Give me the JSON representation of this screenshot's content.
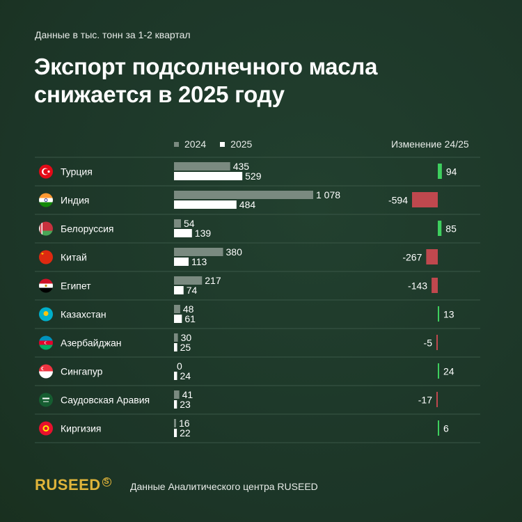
{
  "header": {
    "subtitle": "Данные в тыс. тонн за 1-2 квартал",
    "title": "Экспорт подсолнечного масла снижается в 2025 году"
  },
  "legend": {
    "label_2024": "2024",
    "label_2025": "2025"
  },
  "change_header": "Изменение 24/25",
  "colors": {
    "bar_2024": "#7a8a80",
    "bar_2025": "#ffffff",
    "positive": "#3ecf5e",
    "negative": "#c0484e",
    "divider": "#3a5747",
    "text": "#ffffff"
  },
  "chart_data": {
    "type": "bar",
    "categories": [
      "Турция",
      "Индия",
      "Белоруссия",
      "Китай",
      "Египет",
      "Казахстан",
      "Азербайджан",
      "Сингапур",
      "Саудовская Аравия",
      "Киргизия"
    ],
    "series": [
      {
        "name": "2024",
        "values": [
          435,
          1078,
          54,
          380,
          217,
          48,
          30,
          0,
          41,
          16
        ]
      },
      {
        "name": "2025",
        "values": [
          529,
          484,
          139,
          113,
          74,
          61,
          25,
          24,
          23,
          22
        ]
      }
    ],
    "value_labels_2024": [
      "435",
      "1 078",
      "54",
      "380",
      "217",
      "48",
      "30",
      "0",
      "41",
      "16"
    ],
    "value_labels_2025": [
      "529",
      "484",
      "139",
      "113",
      "74",
      "61",
      "25",
      "24",
      "23",
      "22"
    ],
    "change": [
      94,
      -594,
      85,
      -267,
      -143,
      13,
      -5,
      24,
      -17,
      6
    ],
    "change_labels": [
      "94",
      "-594",
      "85",
      "-267",
      "-143",
      "13",
      "-5",
      "24",
      "-17",
      "6"
    ],
    "flag_icons": [
      "turkey-flag-icon",
      "india-flag-icon",
      "belarus-flag-icon",
      "china-flag-icon",
      "egypt-flag-icon",
      "kazakhstan-flag-icon",
      "azerbaijan-flag-icon",
      "singapore-flag-icon",
      "saudi-arabia-flag-icon",
      "kyrgyzstan-flag-icon"
    ],
    "xlim": [
      0,
      1078
    ]
  },
  "footer": {
    "logo": "RUSEED",
    "logo_mark": "S",
    "source": "Данные Аналитического центра RUSEED"
  }
}
